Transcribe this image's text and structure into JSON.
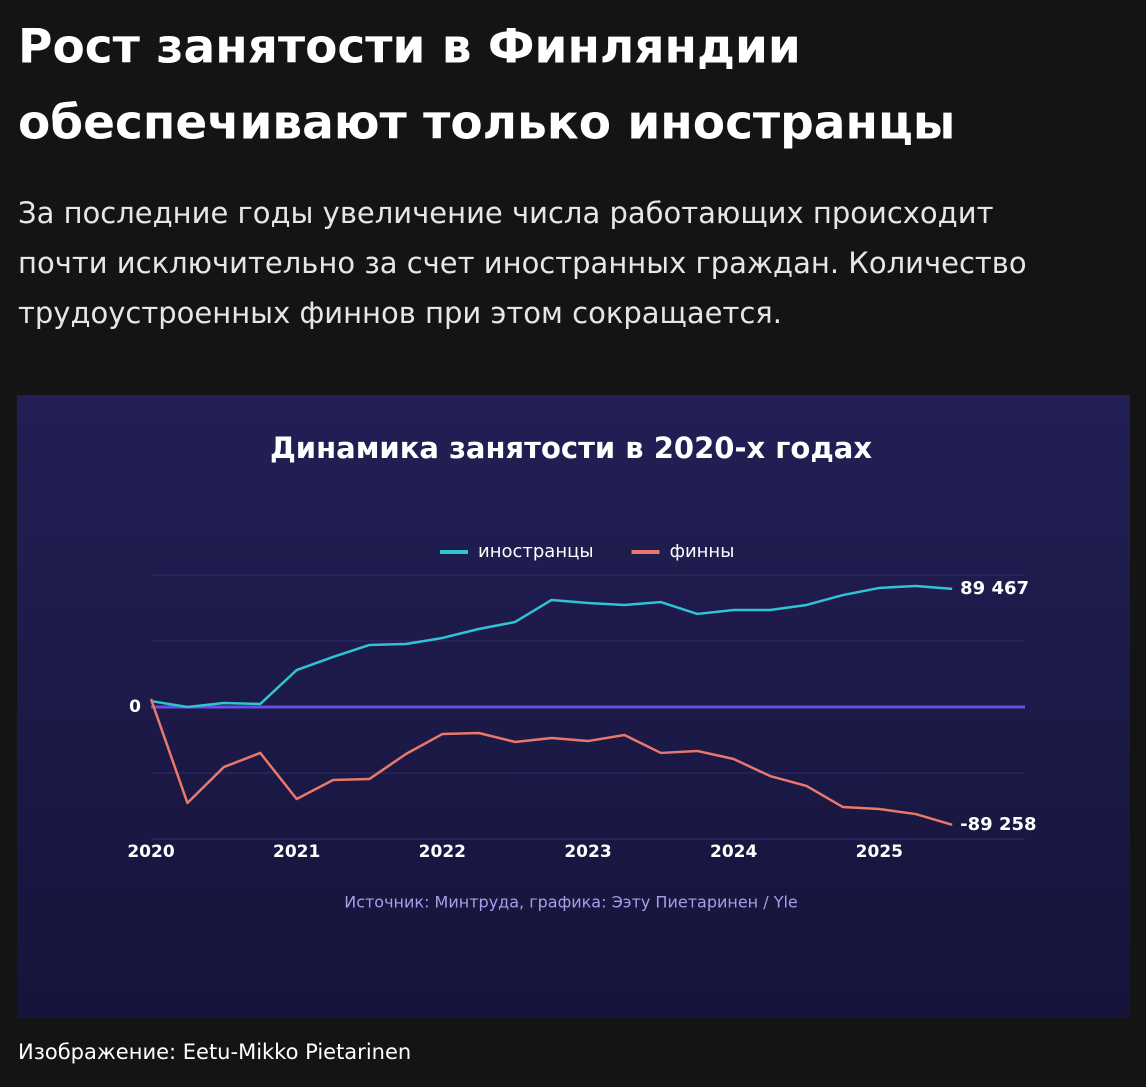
{
  "header": {
    "title_lines": [
      "Рост занятости в Финляндии",
      "обеспечивают только иностранцы"
    ],
    "lead_lines": [
      "За последние годы увеличение числа работающих происходит",
      "почти исключительно за счет иностранных граждан. Количество",
      "трудоустроенных финнов при этом сокращается."
    ]
  },
  "chart_data": {
    "type": "line",
    "title": "Динамика занятости в 2020-х годах",
    "x": [
      2020,
      2020.25,
      2020.5,
      2020.75,
      2021,
      2021.25,
      2021.5,
      2021.75,
      2022,
      2022.25,
      2022.5,
      2022.75,
      2023,
      2023.25,
      2023.5,
      2023.75,
      2024,
      2024.25,
      2024.5,
      2024.75,
      2025,
      2025.25,
      2025.5
    ],
    "series": [
      {
        "name": "иностранцы",
        "color": "#2fc3d3",
        "values": [
          4500,
          0,
          3000,
          2300,
          28000,
          37900,
          47000,
          47700,
          52300,
          59100,
          64400,
          81100,
          78800,
          77300,
          79500,
          70500,
          73500,
          73500,
          77300,
          84800,
          90200,
          91700,
          89467
        ],
        "end_label": "89 467"
      },
      {
        "name": "финны",
        "color": "#e9786c",
        "values": [
          6000,
          -72700,
          -45500,
          -34800,
          -69700,
          -55300,
          -54500,
          -35600,
          -20500,
          -19700,
          -26500,
          -23500,
          -25800,
          -21200,
          -34800,
          -33300,
          -39400,
          -52300,
          -59800,
          -75800,
          -77300,
          -81100,
          -89258
        ],
        "end_label": "-89 258"
      }
    ],
    "xlim": [
      2020,
      2026
    ],
    "xticks": [
      2020,
      2021,
      2022,
      2023,
      2024,
      2025
    ],
    "ylim": [
      -100000,
      100000
    ],
    "yticks": [
      0
    ],
    "ygrid": [
      -100000,
      -50000,
      50000,
      100000
    ],
    "legend": "top",
    "source": "Источник: Минтруда, графика: Ээту Пиетаринен / Yle"
  },
  "caption": "Изображение: Eetu-Mikko Pietarinen"
}
